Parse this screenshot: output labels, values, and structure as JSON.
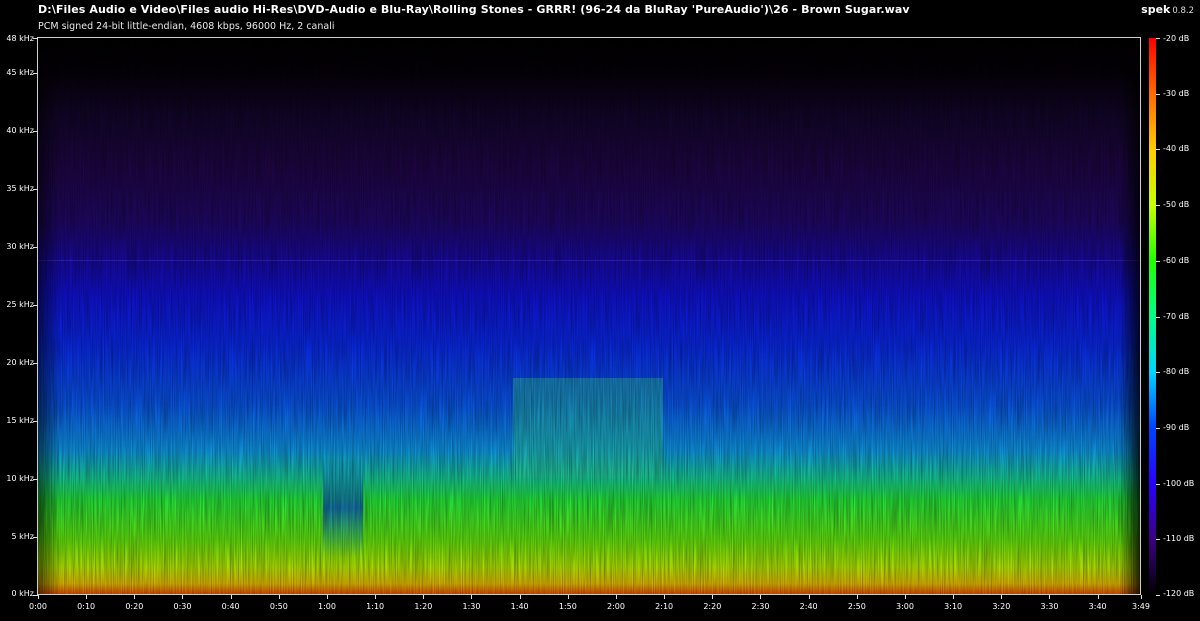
{
  "header": {
    "file_path": "D:\\Files Audio e Video\\Files audio Hi-Res\\DVD-Audio e Blu-Ray\\Rolling Stones - GRRR! (96-24 da BluRay 'PureAudio')\\26 - Brown Sugar.wav",
    "stream_info": "PCM signed 24-bit little-endian, 4608 kbps, 96000 Hz, 2 canali",
    "app_name": "spek",
    "app_version": "0.8.2"
  },
  "frequency_axis": {
    "labels": [
      "48 kHz",
      "45 kHz",
      "40 kHz",
      "35 kHz",
      "30 kHz",
      "25 kHz",
      "20 kHz",
      "15 kHz",
      "10 kHz",
      "5 kHz",
      "0 kHz"
    ],
    "values_khz": [
      48,
      45,
      40,
      35,
      30,
      25,
      20,
      15,
      10,
      5,
      0
    ],
    "max_khz": 48
  },
  "time_axis": {
    "labels": [
      "0:00",
      "0:10",
      "0:20",
      "0:30",
      "0:40",
      "0:50",
      "1:00",
      "1:10",
      "1:20",
      "1:30",
      "1:40",
      "1:50",
      "2:00",
      "2:10",
      "2:20",
      "2:30",
      "2:40",
      "2:50",
      "3:00",
      "3:10",
      "3:20",
      "3:30",
      "3:40",
      "3:49"
    ],
    "seconds": [
      0,
      10,
      20,
      30,
      40,
      50,
      60,
      70,
      80,
      90,
      100,
      110,
      120,
      130,
      140,
      150,
      160,
      170,
      180,
      190,
      200,
      210,
      220,
      229
    ],
    "duration_s": 229
  },
  "colorbar": {
    "labels": [
      "-20 dB",
      "-30 dB",
      "-40 dB",
      "-50 dB",
      "-60 dB",
      "-70 dB",
      "-80 dB",
      "-90 dB",
      "-100 dB",
      "-110 dB",
      "-120 dB"
    ],
    "values_db": [
      -20,
      -30,
      -40,
      -50,
      -60,
      -70,
      -80,
      -90,
      -100,
      -110,
      -120
    ],
    "palette": [
      "#ff0000",
      "#ff6a00",
      "#ffcc00",
      "#c8ff00",
      "#22ff00",
      "#00ff8a",
      "#00d4ff",
      "#0044ff",
      "#2a00ff",
      "#3a0080",
      "#000000"
    ]
  }
}
